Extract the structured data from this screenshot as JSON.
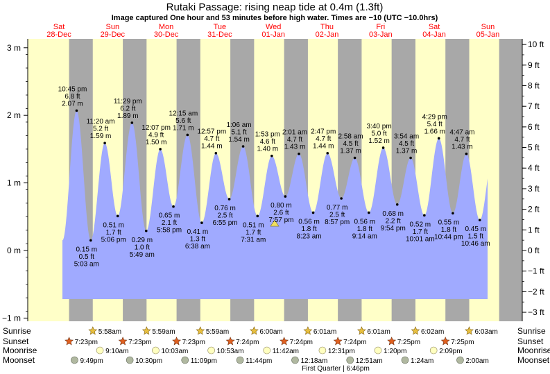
{
  "chart_data": {
    "type": "area",
    "title": "Rutaki Passage: rising  neap tide at 0.4m (1.3ft)",
    "subtitle": "Image captured One hour and 53 minutes before high water. Times are −10 (UTC −10.0hrs)",
    "y_left": {
      "ticks": [
        -1,
        0,
        1,
        2,
        3
      ],
      "tick_labels": [
        "−1 m",
        "0 m",
        "1 m",
        "2 m",
        "3 m"
      ],
      "range": [
        -1.0,
        3.1
      ]
    },
    "y_right": {
      "ticks": [
        -3,
        -2,
        -1,
        0,
        1,
        2,
        3,
        4,
        5,
        6,
        7,
        8,
        9,
        10
      ],
      "tick_labels": [
        "−3 ft",
        "−2 ft",
        "−1 ft",
        "0 ft",
        "1 ft",
        "2 ft",
        "3 ft",
        "4 ft",
        "5 ft",
        "6 ft",
        "7 ft",
        "8 ft",
        "9 ft",
        "10 ft"
      ]
    },
    "days": [
      {
        "name": "Sat",
        "date": "28-Dec"
      },
      {
        "name": "Sun",
        "date": "29-Dec"
      },
      {
        "name": "Mon",
        "date": "30-Dec"
      },
      {
        "name": "Tue",
        "date": "31-Dec"
      },
      {
        "name": "Wed",
        "date": "01-Jan"
      },
      {
        "name": "Thu",
        "date": "02-Jan"
      },
      {
        "name": "Fri",
        "date": "03-Jan"
      },
      {
        "name": "Sat",
        "date": "04-Jan"
      },
      {
        "name": "Sun",
        "date": "05-Jan"
      }
    ],
    "current_level_m": 0.4,
    "tides": [
      {
        "time": "10:45 pm",
        "ft": "6.8 ft",
        "m": 2.07,
        "type": "high"
      },
      {
        "time": "5:03 am",
        "ft": "0.5 ft",
        "m": 0.15,
        "type": "low"
      },
      {
        "time": "11:20 am",
        "ft": "5.2 ft",
        "m": 1.59,
        "type": "high"
      },
      {
        "time": "5:06 pm",
        "ft": "1.7 ft",
        "m": 0.51,
        "type": "low"
      },
      {
        "time": "11:29 pm",
        "ft": "6.2 ft",
        "m": 1.89,
        "type": "high"
      },
      {
        "time": "5:49 am",
        "ft": "1.0 ft",
        "m": 0.29,
        "type": "low"
      },
      {
        "time": "12:07 pm",
        "ft": "4.9 ft",
        "m": 1.5,
        "type": "high"
      },
      {
        "time": "5:58 pm",
        "ft": "2.1 ft",
        "m": 0.65,
        "type": "low"
      },
      {
        "time": "12:15 am",
        "ft": "5.6 ft",
        "m": 1.71,
        "type": "high"
      },
      {
        "time": "6:38 am",
        "ft": "1.3 ft",
        "m": 0.41,
        "type": "low"
      },
      {
        "time": "12:57 pm",
        "ft": "4.7 ft",
        "m": 1.44,
        "type": "high"
      },
      {
        "time": "6:55 pm",
        "ft": "2.5 ft",
        "m": 0.76,
        "type": "low"
      },
      {
        "time": "1:06 am",
        "ft": "5.1 ft",
        "m": 1.54,
        "type": "high"
      },
      {
        "time": "7:31 am",
        "ft": "1.7 ft",
        "m": 0.51,
        "type": "low"
      },
      {
        "time": "1:53 pm",
        "ft": "4.6 ft",
        "m": 1.4,
        "type": "high"
      },
      {
        "time": "7:57 pm",
        "ft": "2.6 ft",
        "m": 0.8,
        "type": "low"
      },
      {
        "time": "2:01 am",
        "ft": "4.7 ft",
        "m": 1.43,
        "type": "high"
      },
      {
        "time": "8:23 am",
        "ft": "1.8 ft",
        "m": 0.56,
        "type": "low"
      },
      {
        "time": "2:47 pm",
        "ft": "4.7 ft",
        "m": 1.44,
        "type": "high"
      },
      {
        "time": "8:57 pm",
        "ft": "2.5 ft",
        "m": 0.77,
        "type": "low"
      },
      {
        "time": "2:58 am",
        "ft": "4.5 ft",
        "m": 1.37,
        "type": "high"
      },
      {
        "time": "9:14 am",
        "ft": "1.8 ft",
        "m": 0.56,
        "type": "low"
      },
      {
        "time": "3:40 pm",
        "ft": "5.0 ft",
        "m": 1.52,
        "type": "high"
      },
      {
        "time": "9:54 pm",
        "ft": "2.2 ft",
        "m": 0.68,
        "type": "low"
      },
      {
        "time": "3:54 am",
        "ft": "4.5 ft",
        "m": 1.37,
        "type": "high"
      },
      {
        "time": "10:01 am",
        "ft": "1.7 ft",
        "m": 0.52,
        "type": "low"
      },
      {
        "time": "4:29 pm",
        "ft": "5.4 ft",
        "m": 1.66,
        "type": "high"
      },
      {
        "time": "10:44 pm",
        "ft": "1.8 ft",
        "m": 0.55,
        "type": "low"
      },
      {
        "time": "4:47 am",
        "ft": "4.7 ft",
        "m": 1.43,
        "type": "high"
      },
      {
        "time": "10:46 am",
        "ft": "1.5 ft",
        "m": 0.45,
        "type": "low"
      }
    ],
    "rows": {
      "sunrise": {
        "label": "Sunrise",
        "times": [
          "5:58am",
          "5:59am",
          "5:59am",
          "6:00am",
          "6:01am",
          "6:01am",
          "6:02am",
          "6:03am"
        ]
      },
      "sunset": {
        "label": "Sunset",
        "times": [
          "7:23pm",
          "7:23pm",
          "7:23pm",
          "7:24pm",
          "7:24pm",
          "7:24pm",
          "7:25pm",
          "7:25pm"
        ]
      },
      "moonrise": {
        "label": "Moonrise",
        "times": [
          "9:10am",
          "10:03am",
          "10:53am",
          "11:42am",
          "12:31pm",
          "1:20pm",
          "2:09pm"
        ]
      },
      "moonset": {
        "label": "Moonset",
        "times": [
          "9:49pm",
          "10:30pm",
          "11:09pm",
          "11:44pm",
          "12:18am",
          "12:51am",
          "1:24am",
          "2:00am"
        ]
      }
    },
    "moon_phase": "First Quarter | 6:46pm",
    "colors": {
      "day": "#ffffc8",
      "night": "#a8a8a8",
      "water": "#a0aaff",
      "day_label": "#ff0000",
      "sun_icon": "#e8c040",
      "sunset_icon": "#e06020",
      "moonrise_icon": "#ffffc0",
      "moonset_icon": "#b0b8a0"
    }
  }
}
